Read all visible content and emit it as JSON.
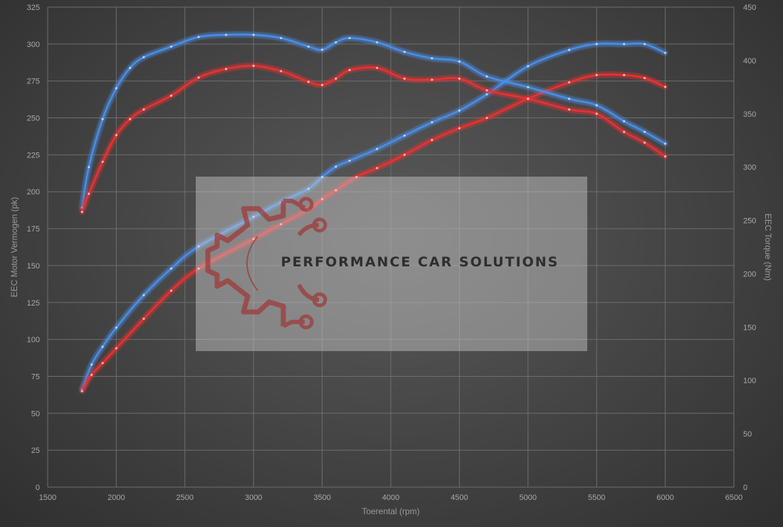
{
  "chart_data": {
    "type": "line",
    "xlabel": "Toerental (rpm)",
    "ylabel_left": "EEC Motor Vermogen (pk)",
    "ylabel_right": "EEC Torque (Nm)",
    "xlim": [
      1500,
      6500
    ],
    "ylim_left": [
      0,
      325
    ],
    "ylim_right": [
      0,
      450
    ],
    "x_ticks": [
      1500,
      2000,
      2500,
      3000,
      3500,
      4000,
      4500,
      5000,
      5500,
      6000,
      6500
    ],
    "y_left_ticks": [
      0,
      25,
      50,
      75,
      100,
      125,
      150,
      175,
      200,
      225,
      250,
      275,
      300,
      325
    ],
    "y_right_ticks": [
      0,
      50,
      100,
      150,
      200,
      250,
      300,
      350,
      400,
      450
    ],
    "grid": true,
    "legend": "none",
    "watermark": "PERFORMANCE CAR SOLUTIONS",
    "series": [
      {
        "axis": "left",
        "color": "#4a8ee8",
        "x": [
          1750,
          1820,
          1900,
          2000,
          2200,
          2400,
          2600,
          3000,
          3200,
          3400,
          3500,
          3600,
          3700,
          3900,
          4100,
          4300,
          4500,
          4700,
          5000,
          5300,
          5500,
          5700,
          5850,
          6000
        ],
        "values": [
          66,
          83,
          95,
          108,
          130,
          148,
          163,
          183,
          193,
          202,
          210,
          217,
          221,
          229,
          238,
          247,
          255,
          266,
          285,
          296,
          300,
          300,
          300,
          294
        ]
      },
      {
        "axis": "left",
        "color": "#e83030",
        "x": [
          1750,
          1820,
          1900,
          2000,
          2200,
          2400,
          2600,
          3000,
          3200,
          3400,
          3500,
          3600,
          3750,
          3900,
          4100,
          4300,
          4500,
          4700,
          5000,
          5300,
          5500,
          5700,
          5850,
          6000
        ],
        "values": [
          65,
          76,
          84,
          94,
          114,
          133,
          148,
          168,
          178,
          188,
          195,
          201,
          210,
          216,
          225,
          235,
          243,
          250,
          263,
          274,
          279,
          279,
          277,
          271
        ]
      },
      {
        "axis": "right",
        "color": "#4a8ee8",
        "x": [
          1750,
          1800,
          1900,
          2000,
          2100,
          2200,
          2400,
          2600,
          2800,
          3000,
          3200,
          3400,
          3500,
          3600,
          3700,
          3900,
          4100,
          4300,
          4500,
          4700,
          5000,
          5300,
          5500,
          5700,
          5850,
          6000
        ],
        "values": [
          262,
          300,
          345,
          374,
          393,
          403,
          413,
          422,
          424,
          424,
          421,
          413,
          410,
          417,
          421,
          417,
          408,
          402,
          399,
          385,
          375,
          364,
          358,
          343,
          333,
          322
        ]
      },
      {
        "axis": "right",
        "color": "#e83030",
        "x": [
          1750,
          1800,
          1900,
          2000,
          2100,
          2200,
          2400,
          2600,
          2800,
          3000,
          3200,
          3400,
          3500,
          3600,
          3700,
          3900,
          4100,
          4300,
          4500,
          4700,
          5000,
          5300,
          5500,
          5700,
          5850,
          6000
        ],
        "values": [
          258,
          275,
          305,
          330,
          345,
          354,
          367,
          384,
          392,
          395,
          390,
          380,
          377,
          383,
          391,
          393,
          383,
          382,
          383,
          372,
          364,
          354,
          350,
          333,
          323,
          310
        ]
      }
    ]
  }
}
